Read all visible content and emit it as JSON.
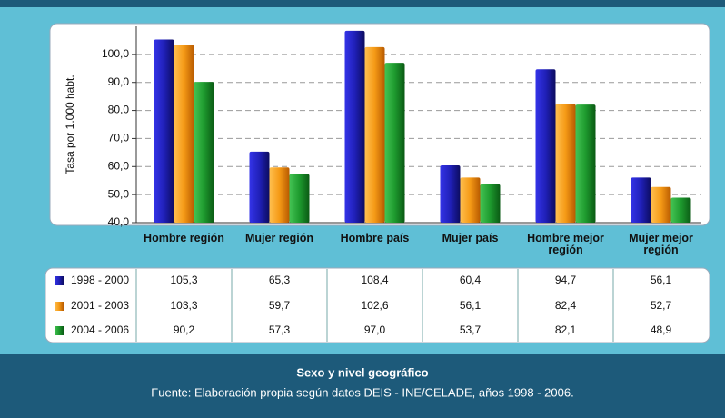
{
  "chart_data": {
    "type": "bar",
    "y_axis_label": "Tasa por 1.000 habt.",
    "categories": [
      "Hombre región",
      "Mujer región",
      "Hombre país",
      "Mujer país",
      "Hombre mejor región",
      "Mujer mejor región"
    ],
    "series": [
      {
        "name": "1998 - 2000",
        "color": "#2a2ad0",
        "values": [
          105.3,
          65.3,
          108.4,
          60.4,
          94.7,
          56.1
        ],
        "value_labels": [
          "105,3",
          "65,3",
          "108,4",
          "60,4",
          "94,7",
          "56,1"
        ]
      },
      {
        "name": "2001 - 2003",
        "color": "#f7a21c",
        "values": [
          103.3,
          59.7,
          102.6,
          56.1,
          82.4,
          52.7
        ],
        "value_labels": [
          "103,3",
          "59,7",
          "102,6",
          "56,1",
          "82,4",
          "52,7"
        ]
      },
      {
        "name": "2004 - 2006",
        "color": "#20a232",
        "values": [
          90.2,
          57.3,
          97.0,
          53.7,
          82.1,
          48.9
        ],
        "value_labels": [
          "90,2",
          "57,3",
          "97,0",
          "53,7",
          "82,1",
          "48,9"
        ]
      }
    ],
    "ylim": [
      40,
      110
    ],
    "yticks": [
      {
        "value": 40,
        "label": "40,0"
      },
      {
        "value": 50,
        "label": "50,0"
      },
      {
        "value": 60,
        "label": "60,0"
      },
      {
        "value": 70,
        "label": "70,0"
      },
      {
        "value": 80,
        "label": "80,0"
      },
      {
        "value": 90,
        "label": "90,0"
      },
      {
        "value": 100,
        "label": "100,0"
      }
    ],
    "grid": true,
    "footer_title": "Sexo y nivel geográfico",
    "footer_source": "Fuente: Elaboración propia según datos DEIS - INE/CELADE, años 1998  - 2006."
  }
}
